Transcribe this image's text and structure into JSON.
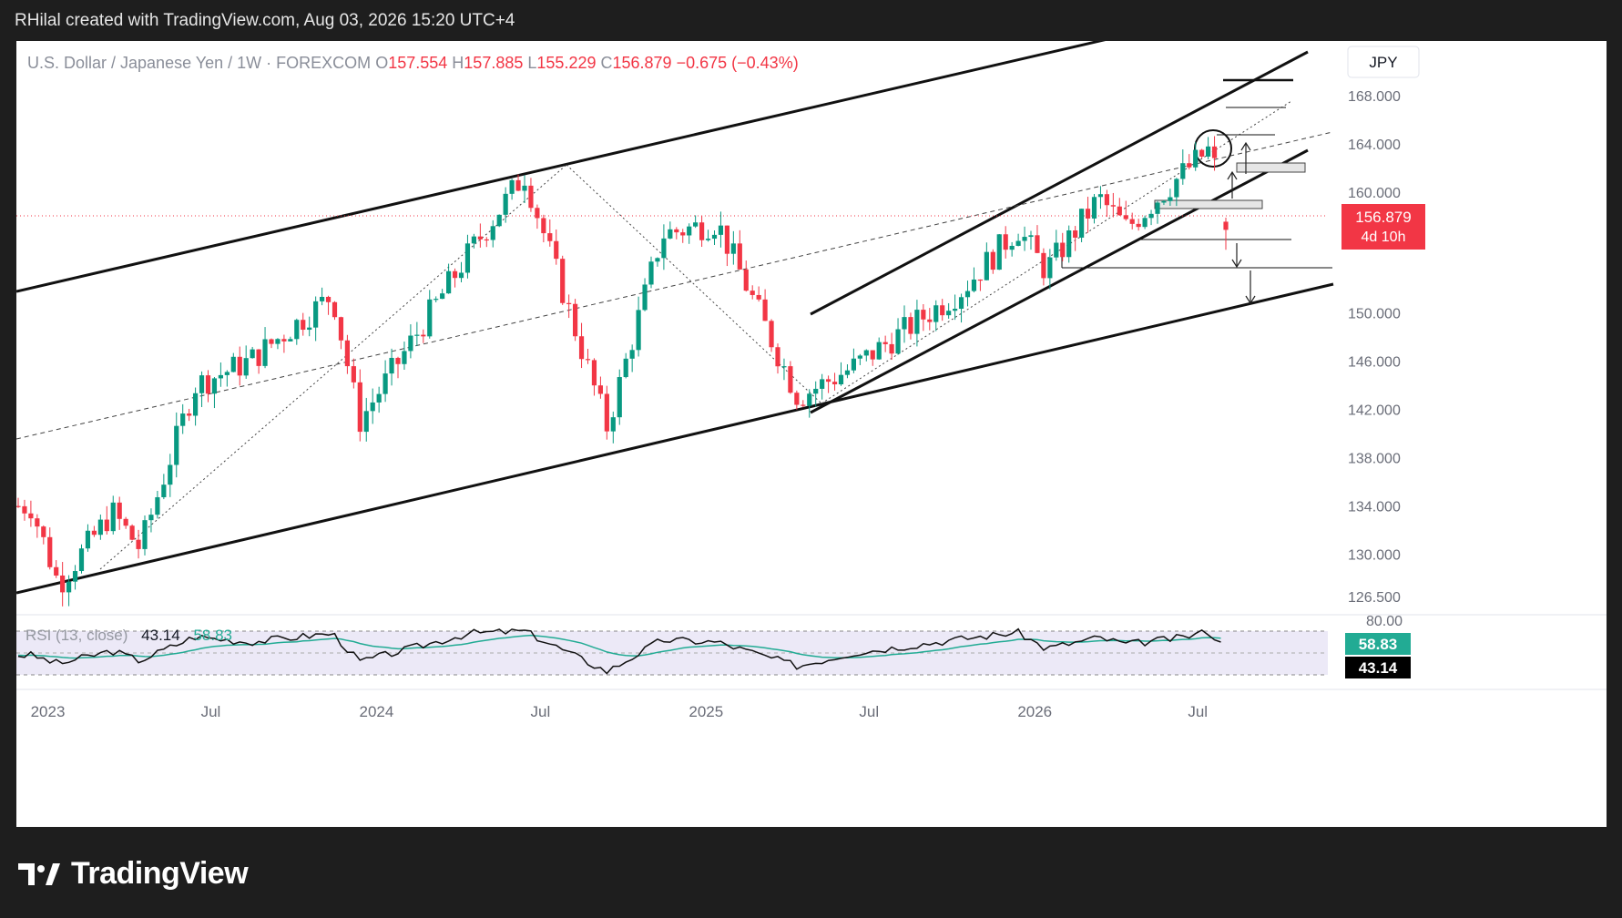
{
  "credit": "RHilal created with TradingView.com, Aug 03, 2026 15:20 UTC+4",
  "brand": "TradingView",
  "header": {
    "symbol": "U.S. Dollar / Japanese Yen",
    "interval": "1W",
    "exchange": "FOREXCOM",
    "open_label": "O",
    "open": "157.554",
    "high_label": "H",
    "high": "157.885",
    "low_label": "L",
    "low": "155.229",
    "close_label": "C",
    "close": "156.879",
    "change": "−0.675 (−0.43%)"
  },
  "currency_button": "JPY",
  "price_axis": {
    "ticks": [
      "168.000",
      "164.000",
      "160.000",
      "150.000",
      "146.000",
      "142.000",
      "138.000",
      "134.000",
      "130.000",
      "126.500"
    ],
    "current_price": "156.879",
    "countdown": "4d 10h"
  },
  "rsi": {
    "label": "RSI (13, close)",
    "value": "43.14",
    "ma_value": "58.83",
    "top_tick": "80.00"
  },
  "colors": {
    "up": "#089981",
    "down": "#f23645",
    "rsi_line": "#000000",
    "rsi_ma": "#22ab94",
    "rsi_band": "#ece9f7",
    "price_label": "#f23645"
  },
  "chart_data": {
    "type": "candlestick",
    "title": "U.S. Dollar / Japanese Yen · 1W · FOREXCOM",
    "x_ticks": [
      "2023",
      "Jul",
      "2024",
      "Jul",
      "2025",
      "Jul",
      "2026",
      "Jul"
    ],
    "y_axis_ticks": [
      168,
      164,
      160,
      150,
      146,
      142,
      138,
      134,
      130,
      126.5
    ],
    "last_candle": {
      "open": 157.554,
      "high": 157.885,
      "low": 155.229,
      "close": 156.879
    },
    "weekly_close_path": [
      {
        "date": "2022-12",
        "value": 134.0
      },
      {
        "date": "2023-01",
        "value": 127.5
      },
      {
        "date": "2023-03",
        "value": 133.5
      },
      {
        "date": "2023-04",
        "value": 130.5
      },
      {
        "date": "2023-06",
        "value": 144.0
      },
      {
        "date": "2023-08",
        "value": 146.0
      },
      {
        "date": "2023-11",
        "value": 151.5
      },
      {
        "date": "2023-12",
        "value": 141.0
      },
      {
        "date": "2024-04",
        "value": 155.0
      },
      {
        "date": "2024-06",
        "value": 161.5
      },
      {
        "date": "2024-09",
        "value": 140.5
      },
      {
        "date": "2024-11",
        "value": 156.5
      },
      {
        "date": "2025-01",
        "value": 157.5
      },
      {
        "date": "2025-04",
        "value": 143.0
      },
      {
        "date": "2025-06",
        "value": 145.5
      },
      {
        "date": "2025-10",
        "value": 152.0
      },
      {
        "date": "2025-12",
        "value": 157.0
      },
      {
        "date": "2026-01",
        "value": 153.5
      },
      {
        "date": "2026-03",
        "value": 159.5
      },
      {
        "date": "2026-04",
        "value": 157.0
      },
      {
        "date": "2026-06",
        "value": 161.5
      },
      {
        "date": "2026-07",
        "value": 163.5
      },
      {
        "date": "2026-08",
        "value": 156.879
      }
    ],
    "rsi_values": [
      {
        "date": "2022-12",
        "value": 48
      },
      {
        "date": "2023-01",
        "value": 40
      },
      {
        "date": "2023-03",
        "value": 52
      },
      {
        "date": "2023-04",
        "value": 43
      },
      {
        "date": "2023-06",
        "value": 65
      },
      {
        "date": "2023-08",
        "value": 60
      },
      {
        "date": "2023-11",
        "value": 68
      },
      {
        "date": "2023-12",
        "value": 42
      },
      {
        "date": "2024-04",
        "value": 68
      },
      {
        "date": "2024-06",
        "value": 70
      },
      {
        "date": "2024-09",
        "value": 33
      },
      {
        "date": "2024-11",
        "value": 62
      },
      {
        "date": "2025-01",
        "value": 60
      },
      {
        "date": "2025-04",
        "value": 38
      },
      {
        "date": "2025-06",
        "value": 50
      },
      {
        "date": "2025-10",
        "value": 63
      },
      {
        "date": "2025-12",
        "value": 69
      },
      {
        "date": "2026-01",
        "value": 54
      },
      {
        "date": "2026-03",
        "value": 64
      },
      {
        "date": "2026-04",
        "value": 58
      },
      {
        "date": "2026-06",
        "value": 64
      },
      {
        "date": "2026-07",
        "value": 70
      },
      {
        "date": "2026-08",
        "value": 43.14
      }
    ]
  }
}
